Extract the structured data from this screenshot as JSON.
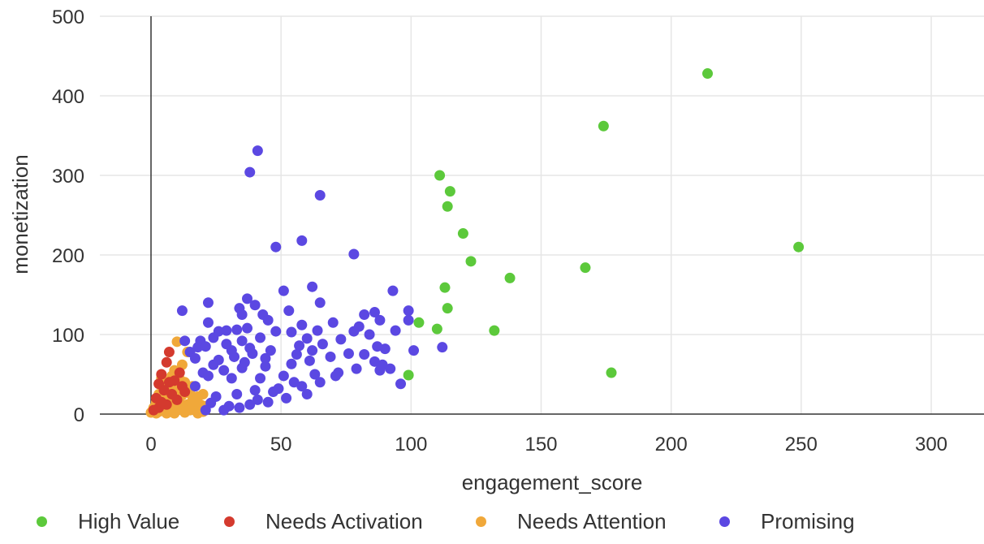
{
  "chart_data": {
    "type": "scatter",
    "title": "",
    "xlabel": "engagement_score",
    "ylabel": "monetization",
    "xlim": [
      -20,
      320
    ],
    "ylim": [
      0,
      500
    ],
    "x_ticks": [
      0,
      50,
      100,
      150,
      200,
      250,
      300
    ],
    "y_ticks": [
      0,
      100,
      200,
      300,
      400,
      500
    ],
    "x_tick_labels": [
      "0",
      "50",
      "100",
      "150",
      "200",
      "250",
      "300"
    ],
    "y_tick_labels": [
      "0",
      "100",
      "200",
      "300",
      "400",
      "500"
    ],
    "grid": true,
    "legend_position": "bottom",
    "series": [
      {
        "name": "High Value",
        "color": "#5cc93b",
        "points": [
          [
            214,
            428
          ],
          [
            174,
            362
          ],
          [
            249,
            210
          ],
          [
            111,
            300
          ],
          [
            115,
            280
          ],
          [
            114,
            261
          ],
          [
            120,
            227
          ],
          [
            123,
            192
          ],
          [
            167,
            184
          ],
          [
            138,
            171
          ],
          [
            113,
            159
          ],
          [
            114,
            133
          ],
          [
            103,
            115
          ],
          [
            110,
            107
          ],
          [
            132,
            105
          ],
          [
            177,
            52
          ],
          [
            99,
            49
          ]
        ]
      },
      {
        "name": "Needs Activation",
        "color": "#d43a2e",
        "points": [
          [
            7,
            78
          ],
          [
            6,
            65
          ],
          [
            4,
            50
          ],
          [
            11,
            52
          ],
          [
            3,
            38
          ],
          [
            5,
            30
          ],
          [
            8,
            25
          ],
          [
            2,
            20
          ],
          [
            9,
            42
          ],
          [
            12,
            35
          ],
          [
            6,
            12
          ],
          [
            3,
            8
          ],
          [
            10,
            18
          ],
          [
            1,
            5
          ],
          [
            4,
            15
          ],
          [
            13,
            28
          ],
          [
            7,
            40
          ]
        ]
      },
      {
        "name": "Needs Attention",
        "color": "#f0a83a",
        "points": [
          [
            10,
            91
          ],
          [
            14,
            78
          ],
          [
            12,
            62
          ],
          [
            9,
            55
          ],
          [
            8,
            48
          ],
          [
            11,
            44
          ],
          [
            6,
            40
          ],
          [
            13,
            40
          ],
          [
            16,
            35
          ],
          [
            5,
            35
          ],
          [
            10,
            30
          ],
          [
            7,
            28
          ],
          [
            14,
            27
          ],
          [
            3,
            25
          ],
          [
            12,
            24
          ],
          [
            18,
            22
          ],
          [
            9,
            20
          ],
          [
            6,
            18
          ],
          [
            16,
            18
          ],
          [
            2,
            15
          ],
          [
            11,
            15
          ],
          [
            4,
            12
          ],
          [
            14,
            12
          ],
          [
            19,
            12
          ],
          [
            8,
            10
          ],
          [
            1,
            8
          ],
          [
            12,
            8
          ],
          [
            17,
            8
          ],
          [
            5,
            6
          ],
          [
            10,
            5
          ],
          [
            15,
            5
          ],
          [
            3,
            3
          ],
          [
            7,
            3
          ],
          [
            20,
            3
          ],
          [
            0,
            2
          ],
          [
            13,
            2
          ],
          [
            9,
            1
          ],
          [
            18,
            1
          ],
          [
            2,
            1
          ],
          [
            6,
            1
          ],
          [
            21,
            10
          ],
          [
            15,
            30
          ],
          [
            4,
            45
          ],
          [
            8,
            35
          ],
          [
            11,
            22
          ],
          [
            17,
            16
          ],
          [
            20,
            25
          ]
        ]
      },
      {
        "name": "Promising",
        "color": "#5b48e2",
        "points": [
          [
            41,
            331
          ],
          [
            38,
            304
          ],
          [
            65,
            275
          ],
          [
            58,
            218
          ],
          [
            48,
            210
          ],
          [
            78,
            201
          ],
          [
            93,
            155
          ],
          [
            62,
            160
          ],
          [
            51,
            155
          ],
          [
            37,
            145
          ],
          [
            65,
            140
          ],
          [
            22,
            140
          ],
          [
            40,
            137
          ],
          [
            34,
            133
          ],
          [
            12,
            130
          ],
          [
            53,
            130
          ],
          [
            99,
            130
          ],
          [
            43,
            125
          ],
          [
            35,
            125
          ],
          [
            82,
            125
          ],
          [
            86,
            128
          ],
          [
            45,
            118
          ],
          [
            70,
            115
          ],
          [
            22,
            115
          ],
          [
            58,
            112
          ],
          [
            88,
            118
          ],
          [
            80,
            110
          ],
          [
            99,
            118
          ],
          [
            37,
            108
          ],
          [
            29,
            105
          ],
          [
            33,
            106
          ],
          [
            26,
            104
          ],
          [
            94,
            105
          ],
          [
            64,
            105
          ],
          [
            78,
            104
          ],
          [
            48,
            104
          ],
          [
            54,
            103
          ],
          [
            24,
            96
          ],
          [
            19,
            92
          ],
          [
            13,
            92
          ],
          [
            18,
            84
          ],
          [
            84,
            100
          ],
          [
            60,
            95
          ],
          [
            73,
            94
          ],
          [
            66,
            88
          ],
          [
            57,
            86
          ],
          [
            38,
            83
          ],
          [
            31,
            80
          ],
          [
            46,
            80
          ],
          [
            15,
            78
          ],
          [
            101,
            80
          ],
          [
            112,
            84
          ],
          [
            87,
            85
          ],
          [
            90,
            82
          ],
          [
            76,
            76
          ],
          [
            82,
            75
          ],
          [
            69,
            72
          ],
          [
            61,
            67
          ],
          [
            54,
            63
          ],
          [
            44,
            60
          ],
          [
            35,
            58
          ],
          [
            28,
            55
          ],
          [
            20,
            52
          ],
          [
            22,
            48
          ],
          [
            31,
            45
          ],
          [
            42,
            45
          ],
          [
            51,
            48
          ],
          [
            63,
            50
          ],
          [
            72,
            52
          ],
          [
            86,
            66
          ],
          [
            89,
            62
          ],
          [
            92,
            57
          ],
          [
            96,
            38
          ],
          [
            88,
            55
          ],
          [
            79,
            57
          ],
          [
            71,
            48
          ],
          [
            65,
            40
          ],
          [
            58,
            35
          ],
          [
            49,
            32
          ],
          [
            40,
            30
          ],
          [
            33,
            25
          ],
          [
            25,
            22
          ],
          [
            17,
            35
          ],
          [
            23,
            14
          ],
          [
            30,
            10
          ],
          [
            38,
            12
          ],
          [
            45,
            15
          ],
          [
            52,
            20
          ],
          [
            60,
            25
          ],
          [
            21,
            5
          ],
          [
            28,
            5
          ],
          [
            34,
            8
          ],
          [
            41,
            18
          ],
          [
            47,
            28
          ],
          [
            55,
            40
          ],
          [
            26,
            68
          ],
          [
            32,
            72
          ],
          [
            39,
            76
          ],
          [
            17,
            70
          ],
          [
            24,
            62
          ],
          [
            36,
            65
          ],
          [
            44,
            70
          ],
          [
            29,
            88
          ],
          [
            21,
            85
          ],
          [
            35,
            92
          ],
          [
            42,
            96
          ],
          [
            56,
            75
          ],
          [
            62,
            80
          ]
        ]
      }
    ]
  }
}
